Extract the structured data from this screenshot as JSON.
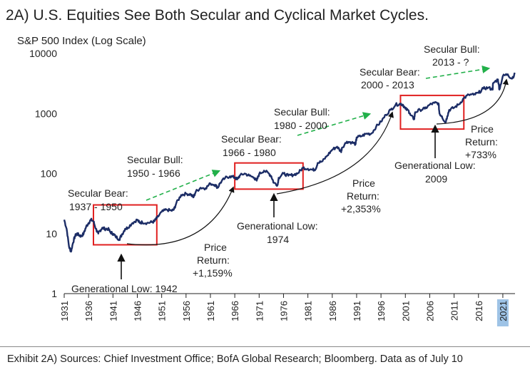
{
  "chart_data": {
    "type": "line",
    "title": "2A) U.S. Equities See Both Secular and Cyclical Market Cycles.",
    "ylabel": "S&P 500 Index (Log Scale)",
    "y_scale": "log",
    "ylim": [
      1,
      10000
    ],
    "y_ticks": [
      "1",
      "10",
      "100",
      "1000",
      "10000"
    ],
    "xlim": [
      1931,
      2023.5
    ],
    "x_ticks": [
      "1931",
      "1936",
      "1941",
      "1946",
      "1951",
      "1956",
      "1961",
      "1966",
      "1971",
      "1976",
      "1981",
      "1986",
      "1991",
      "1996",
      "2001",
      "2006",
      "2011",
      "2016",
      "2021"
    ],
    "highlighted_tick": "2021",
    "line_color": "#1c2d66",
    "series": [
      {
        "x": [
          1931,
          1931.5,
          1932,
          1932.4,
          1932.8,
          1933.2,
          1933.6,
          1934,
          1934.5,
          1935,
          1935.5,
          1936,
          1936.5,
          1937,
          1937.5,
          1938,
          1938.3,
          1938.8,
          1939.3,
          1940,
          1940.5,
          1941,
          1941.5,
          1942.3,
          1942.8,
          1943.5,
          1944,
          1945,
          1946,
          1946.5,
          1947,
          1948,
          1949,
          1949.5,
          1950,
          1951,
          1952,
          1953,
          1953.5,
          1954,
          1955,
          1956,
          1957,
          1957.5,
          1958,
          1959,
          1960,
          1961,
          1962,
          1962.5,
          1963,
          1964,
          1965,
          1966,
          1966.5,
          1967,
          1968,
          1969,
          1970,
          1970.5,
          1971,
          1972,
          1973,
          1973.5,
          1974,
          1974.8,
          1975,
          1976,
          1977,
          1978,
          1979,
          1980,
          1981,
          1982,
          1982.6,
          1983,
          1984,
          1985,
          1986,
          1987,
          1987.8,
          1988,
          1989,
          1990,
          1990.8,
          1991,
          1992,
          1993,
          1994,
          1995,
          1996,
          1997,
          1998,
          1999,
          2000,
          2000.5,
          2001,
          2001.7,
          2002,
          2002.8,
          2003,
          2004,
          2005,
          2006,
          2007,
          2007.8,
          2008,
          2008.5,
          2009.2,
          2009.6,
          2010,
          2011,
          2012,
          2013,
          2014,
          2015,
          2016,
          2017,
          2018,
          2018.9,
          2019,
          2020,
          2020.3,
          2021,
          2022,
          2022.8,
          2023.5
        ],
        "values": [
          17,
          12,
          6,
          5,
          7,
          9,
          10,
          9.5,
          9,
          10,
          13,
          15,
          17,
          16,
          12,
          10,
          11,
          12.5,
          12,
          12,
          10.5,
          10,
          9,
          8,
          9.5,
          12,
          12.5,
          15,
          17,
          15,
          15.5,
          15,
          15.5,
          16,
          18,
          23,
          25,
          24,
          25,
          32,
          44,
          46,
          45,
          40,
          50,
          58,
          57,
          68,
          65,
          58,
          70,
          84,
          90,
          86,
          80,
          92,
          100,
          92,
          85,
          76,
          98,
          112,
          100,
          90,
          70,
          65,
          85,
          100,
          92,
          95,
          102,
          125,
          120,
          115,
          120,
          150,
          160,
          200,
          250,
          280,
          230,
          270,
          340,
          330,
          310,
          400,
          420,
          460,
          460,
          600,
          730,
          950,
          1150,
          1400,
          1450,
          1400,
          1200,
          1100,
          950,
          800,
          1050,
          1150,
          1200,
          1400,
          1500,
          1480,
          1000,
          900,
          700,
          900,
          1150,
          1250,
          1420,
          1800,
          2050,
          2050,
          2200,
          2600,
          2700,
          2500,
          3200,
          3700,
          2500,
          4200,
          4500,
          3800,
          4550
        ]
      }
    ],
    "annotations": {
      "secular_bear_1": [
        "Secular Bear:",
        "1937 - 1950"
      ],
      "secular_bull_1": [
        "Secular Bull:",
        "1950 - 1966"
      ],
      "secular_bear_2": [
        "Secular Bear:",
        "1966 - 1980"
      ],
      "secular_bull_2": [
        "Secular Bull:",
        "1980 - 2000"
      ],
      "secular_bear_3": [
        "Secular Bear:",
        "2000 - 2013"
      ],
      "secular_bull_3": [
        "Secular Bull:",
        "2013 - ?"
      ],
      "gen_low_1942": "Generational Low: 1942",
      "gen_low_1974": [
        "Generational Low:",
        "1974"
      ],
      "gen_low_2009": [
        "Generational Low:",
        "2009"
      ],
      "price_return_1": [
        "Price",
        "Return:",
        "+1,159%"
      ],
      "price_return_2": [
        "Price",
        "Return:",
        "+2,353%"
      ],
      "price_return_3": [
        "Price",
        "Return:",
        "+733%"
      ]
    },
    "boxes": [
      {
        "x0": 1937,
        "x1": 1950,
        "y0": 6.5,
        "y1": 30
      },
      {
        "x0": 1966,
        "x1": 1980,
        "y0": 55,
        "y1": 150
      },
      {
        "x0": 2000,
        "x1": 2013,
        "y0": 550,
        "y1": 2000
      }
    ],
    "box_color": "#e02020",
    "bull_arrow_color": "#22b04a"
  },
  "footer": "Exhibit 2A) Sources: Chief Investment Office; BofA Global Research; Bloomberg. Data as of July 10"
}
